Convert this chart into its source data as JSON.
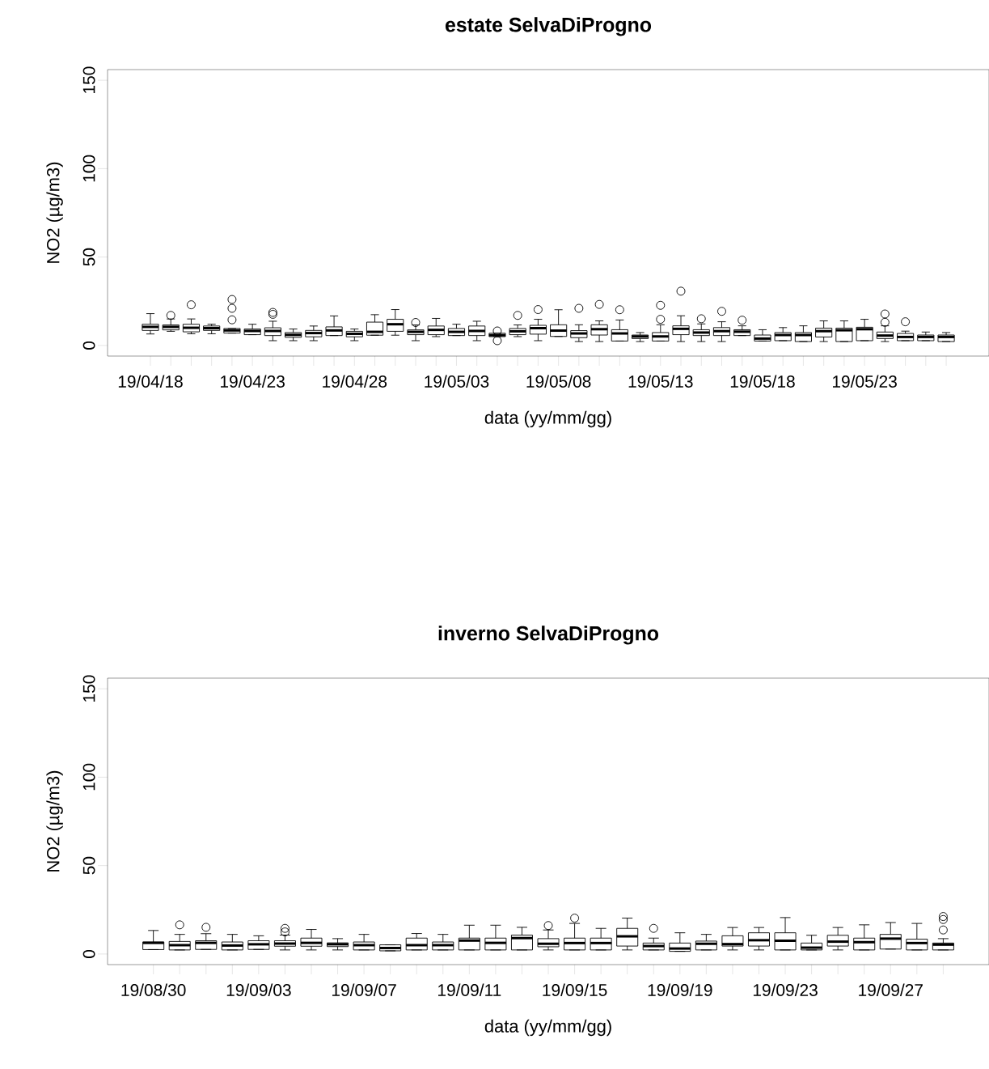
{
  "chart_data": [
    {
      "type": "box",
      "title": "estate  SelvaDiProgno",
      "xlabel": "data (yy/mm/gg)",
      "ylabel": "NO2 (µg/m3)",
      "ylim": [
        -6,
        156
      ],
      "yticks": [
        0,
        50,
        100,
        150
      ],
      "categories": [
        "19/04/18",
        null,
        null,
        null,
        null,
        "19/04/23",
        null,
        null,
        null,
        null,
        "19/04/28",
        null,
        null,
        null,
        null,
        "19/05/03",
        null,
        null,
        null,
        null,
        "19/05/08",
        null,
        null,
        null,
        null,
        "19/05/13",
        null,
        null,
        null,
        null,
        "19/05/18",
        null,
        null,
        null,
        null,
        "19/05/23",
        null,
        null,
        null,
        null
      ],
      "boxes": [
        {
          "low": 6.5,
          "q1": 8.5,
          "median": 10.5,
          "q3": 12,
          "high": 18
        },
        {
          "low": 8,
          "q1": 8.8,
          "median": 10.5,
          "q3": 11.6,
          "high": 15,
          "outliers": [
            17
          ]
        },
        {
          "low": 6.6,
          "q1": 7.7,
          "median": 10,
          "q3": 12,
          "high": 15,
          "outliers": [
            23
          ]
        },
        {
          "low": 6.6,
          "q1": 8.5,
          "median": 9.8,
          "q3": 11,
          "high": 12
        },
        {
          "low": 7,
          "q1": 7,
          "median": 8.5,
          "q3": 9.6,
          "high": 9.6,
          "outliers": [
            14.5,
            21,
            26
          ]
        },
        {
          "low": 6.1,
          "q1": 6.1,
          "median": 8.2,
          "q3": 9.3,
          "high": 12
        },
        {
          "low": 2.7,
          "q1": 5.6,
          "median": 8.2,
          "q3": 10,
          "high": 13.7,
          "outliers": [
            17.6,
            18.7
          ]
        },
        {
          "low": 2.7,
          "q1": 4.6,
          "median": 6,
          "q3": 7.3,
          "high": 9.3
        },
        {
          "low": 2.7,
          "q1": 4.9,
          "median": 7,
          "q3": 8.5,
          "high": 11
        },
        {
          "low": 5.6,
          "q1": 5.6,
          "median": 8.5,
          "q3": 10.5,
          "high": 16.7
        },
        {
          "low": 2.7,
          "q1": 4.9,
          "median": 6.6,
          "q3": 8,
          "high": 9.3
        },
        {
          "low": 5.8,
          "q1": 5.8,
          "median": 7.7,
          "q3": 13.2,
          "high": 17.4
        },
        {
          "low": 5.8,
          "q1": 8,
          "median": 12,
          "q3": 14.8,
          "high": 20.3
        },
        {
          "low": 2.7,
          "q1": 6.1,
          "median": 7.7,
          "q3": 8.8,
          "high": 11.6,
          "outliers": [
            13
          ]
        },
        {
          "low": 5,
          "q1": 6.1,
          "median": 8.8,
          "q3": 11,
          "high": 15.3
        },
        {
          "low": 5.6,
          "q1": 5.6,
          "median": 7.7,
          "q3": 9.6,
          "high": 12
        },
        {
          "low": 2.7,
          "q1": 5.6,
          "median": 8.2,
          "q3": 11,
          "high": 13.7
        },
        {
          "low": 5,
          "q1": 5,
          "median": 5.8,
          "q3": 6.9,
          "high": 6.9,
          "outliers": [
            2.7,
            8.2
          ]
        },
        {
          "low": 5,
          "q1": 6.1,
          "median": 8,
          "q3": 9.6,
          "high": 11.6,
          "outliers": [
            17
          ]
        },
        {
          "low": 2.7,
          "q1": 6.4,
          "median": 9.8,
          "q3": 11.4,
          "high": 14.8,
          "outliers": [
            20.3
          ]
        },
        {
          "low": 5.1,
          "q1": 5.1,
          "median": 8.4,
          "q3": 11.7,
          "high": 20.2
        },
        {
          "low": 2.2,
          "q1": 4.4,
          "median": 6.8,
          "q3": 8.4,
          "high": 11.7,
          "outliers": [
            21
          ]
        },
        {
          "low": 2.2,
          "q1": 5.9,
          "median": 9.2,
          "q3": 11.7,
          "high": 13.9,
          "outliers": [
            23.2
          ]
        },
        {
          "low": 2.5,
          "q1": 2.5,
          "median": 6.8,
          "q3": 8.9,
          "high": 14.4,
          "outliers": [
            20.2
          ]
        },
        {
          "low": 2.2,
          "q1": 3.9,
          "median": 5.1,
          "q3": 5.9,
          "high": 7.3
        },
        {
          "low": 2.5,
          "q1": 2.5,
          "median": 5.1,
          "q3": 7.3,
          "high": 11.7,
          "outliers": [
            14.8,
            22.7
          ]
        },
        {
          "low": 2.2,
          "q1": 6.1,
          "median": 9.4,
          "q3": 11.1,
          "high": 16.8,
          "outliers": [
            30.7
          ]
        },
        {
          "low": 2.2,
          "q1": 5.6,
          "median": 7.3,
          "q3": 8.9,
          "high": 12.2,
          "outliers": [
            15.1
          ]
        },
        {
          "low": 2.2,
          "q1": 5.6,
          "median": 8.1,
          "q3": 10.1,
          "high": 13.4,
          "outliers": [
            19.3
          ]
        },
        {
          "low": 5.6,
          "q1": 5.6,
          "median": 7.8,
          "q3": 8.9,
          "high": 11.1,
          "outliers": [
            14.3
          ]
        },
        {
          "low": 2.5,
          "q1": 2.5,
          "median": 3.9,
          "q3": 5.9,
          "high": 8.9
        },
        {
          "low": 2.7,
          "q1": 2.7,
          "median": 5.9,
          "q3": 7.3,
          "high": 10.1
        },
        {
          "low": 2.2,
          "q1": 2.2,
          "median": 5.9,
          "q3": 7.3,
          "high": 11.1
        },
        {
          "low": 2.2,
          "q1": 4.8,
          "median": 8.1,
          "q3": 9.8,
          "high": 13.9
        },
        {
          "low": 2.2,
          "q1": 2.2,
          "median": 8.6,
          "q3": 9.8,
          "high": 13.9
        },
        {
          "low": 2.7,
          "q1": 2.7,
          "median": 9.2,
          "q3": 10.3,
          "high": 14.8
        },
        {
          "low": 2.2,
          "q1": 3.9,
          "median": 5.6,
          "q3": 7.6,
          "high": 11.1,
          "outliers": [
            13.1,
            17.8
          ]
        },
        {
          "low": 2.7,
          "q1": 2.7,
          "median": 4.8,
          "q3": 6.8,
          "high": 8.1,
          "outliers": [
            13.4
          ]
        },
        {
          "low": 2.7,
          "q1": 2.7,
          "median": 4.8,
          "q3": 5.9,
          "high": 7.6
        },
        {
          "low": 2.2,
          "q1": 2.2,
          "median": 4.8,
          "q3": 5.9,
          "high": 7.3
        }
      ]
    },
    {
      "type": "box",
      "title": "inverno  SelvaDiProgno",
      "xlabel": "data (yy/mm/gg)",
      "ylabel": "NO2 (µg/m3)",
      "ylim": [
        -6,
        156
      ],
      "yticks": [
        0,
        50,
        100,
        150
      ],
      "categories": [
        "19/08/30",
        null,
        null,
        null,
        "19/09/03",
        null,
        null,
        null,
        "19/09/07",
        null,
        null,
        null,
        "19/09/11",
        null,
        null,
        null,
        "19/09/15",
        null,
        null,
        null,
        "19/09/19",
        null,
        null,
        null,
        "19/09/23",
        null,
        null,
        null,
        "19/09/27",
        null,
        null
      ],
      "boxes": [
        {
          "low": 2.5,
          "q1": 2.5,
          "median": 6.3,
          "q3": 6.8,
          "high": 13.3
        },
        {
          "low": 2.3,
          "q1": 2.3,
          "median": 5,
          "q3": 7.1,
          "high": 11.1,
          "outliers": [
            16.5
          ]
        },
        {
          "low": 2.6,
          "q1": 2.6,
          "median": 6.3,
          "q3": 7.5,
          "high": 11.5,
          "outliers": [
            15.1
          ]
        },
        {
          "low": 2.3,
          "q1": 2.3,
          "median": 4.8,
          "q3": 6.8,
          "high": 11.1
        },
        {
          "low": 2.6,
          "q1": 2.6,
          "median": 5.5,
          "q3": 7.5,
          "high": 10.3
        },
        {
          "low": 2.3,
          "q1": 4.4,
          "median": 5.9,
          "q3": 7.5,
          "high": 10.7,
          "outliers": [
            12.5,
            14.5
          ]
        },
        {
          "low": 2.3,
          "q1": 4.4,
          "median": 6.3,
          "q3": 9,
          "high": 13.9
        },
        {
          "low": 2.3,
          "q1": 4.2,
          "median": 5.5,
          "q3": 6.3,
          "high": 8.7
        },
        {
          "low": 2.3,
          "q1": 2.3,
          "median": 5,
          "q3": 6.8,
          "high": 11.1
        },
        {
          "low": 1.8,
          "q1": 1.8,
          "median": 3.4,
          "q3": 5.2,
          "high": 5.2
        },
        {
          "low": 2.3,
          "q1": 2.3,
          "median": 5,
          "q3": 9,
          "high": 11.6
        },
        {
          "low": 2.3,
          "q1": 2.3,
          "median": 5,
          "q3": 6.8,
          "high": 11.1
        },
        {
          "low": 2.3,
          "q1": 2.3,
          "median": 7.6,
          "q3": 9,
          "high": 16.3
        },
        {
          "low": 2.3,
          "q1": 2.3,
          "median": 6.3,
          "q3": 9,
          "high": 16.3
        },
        {
          "low": 2.3,
          "q1": 2.3,
          "median": 9,
          "q3": 10.7,
          "high": 15.1
        },
        {
          "low": 2.3,
          "q1": 4.1,
          "median": 5.8,
          "q3": 8.7,
          "high": 13.6,
          "outliers": [
            16.1
          ]
        },
        {
          "low": 2.3,
          "q1": 2.3,
          "median": 6.2,
          "q3": 9,
          "high": 17.3,
          "outliers": [
            20.3
          ]
        },
        {
          "low": 2.3,
          "q1": 2.3,
          "median": 6.2,
          "q3": 9,
          "high": 14.5
        },
        {
          "low": 2.3,
          "q1": 4.5,
          "median": 10,
          "q3": 14.5,
          "high": 20.3
        },
        {
          "low": 2.3,
          "q1": 2.3,
          "median": 4.5,
          "q3": 6.2,
          "high": 9,
          "outliers": [
            14.5
          ]
        },
        {
          "low": 1.5,
          "q1": 1.5,
          "median": 3.1,
          "q3": 6.2,
          "high": 12
        },
        {
          "low": 2.3,
          "q1": 2.3,
          "median": 5.8,
          "q3": 7.3,
          "high": 11.1
        },
        {
          "low": 2.3,
          "q1": 4.5,
          "median": 5.6,
          "q3": 10.3,
          "high": 15
        },
        {
          "low": 2.3,
          "q1": 4.5,
          "median": 7.8,
          "q3": 12,
          "high": 15
        },
        {
          "low": 2.3,
          "q1": 2.3,
          "median": 7.5,
          "q3": 12,
          "high": 20.6
        },
        {
          "low": 2.3,
          "q1": 2.3,
          "median": 3.6,
          "q3": 6.2,
          "high": 10.6
        },
        {
          "low": 2.3,
          "q1": 4.5,
          "median": 7,
          "q3": 10.6,
          "high": 15
        },
        {
          "low": 2.3,
          "q1": 2.3,
          "median": 6.7,
          "q3": 9,
          "high": 16.5
        },
        {
          "low": 2.8,
          "q1": 2.8,
          "median": 8.7,
          "q3": 11.1,
          "high": 17.8
        },
        {
          "low": 2.3,
          "q1": 2.3,
          "median": 6.2,
          "q3": 8.4,
          "high": 17.3
        },
        {
          "low": 2.3,
          "q1": 2.3,
          "median": 5.3,
          "q3": 6.2,
          "high": 8.7,
          "outliers": [
            13.6,
            19.5,
            21.2
          ]
        }
      ]
    }
  ]
}
